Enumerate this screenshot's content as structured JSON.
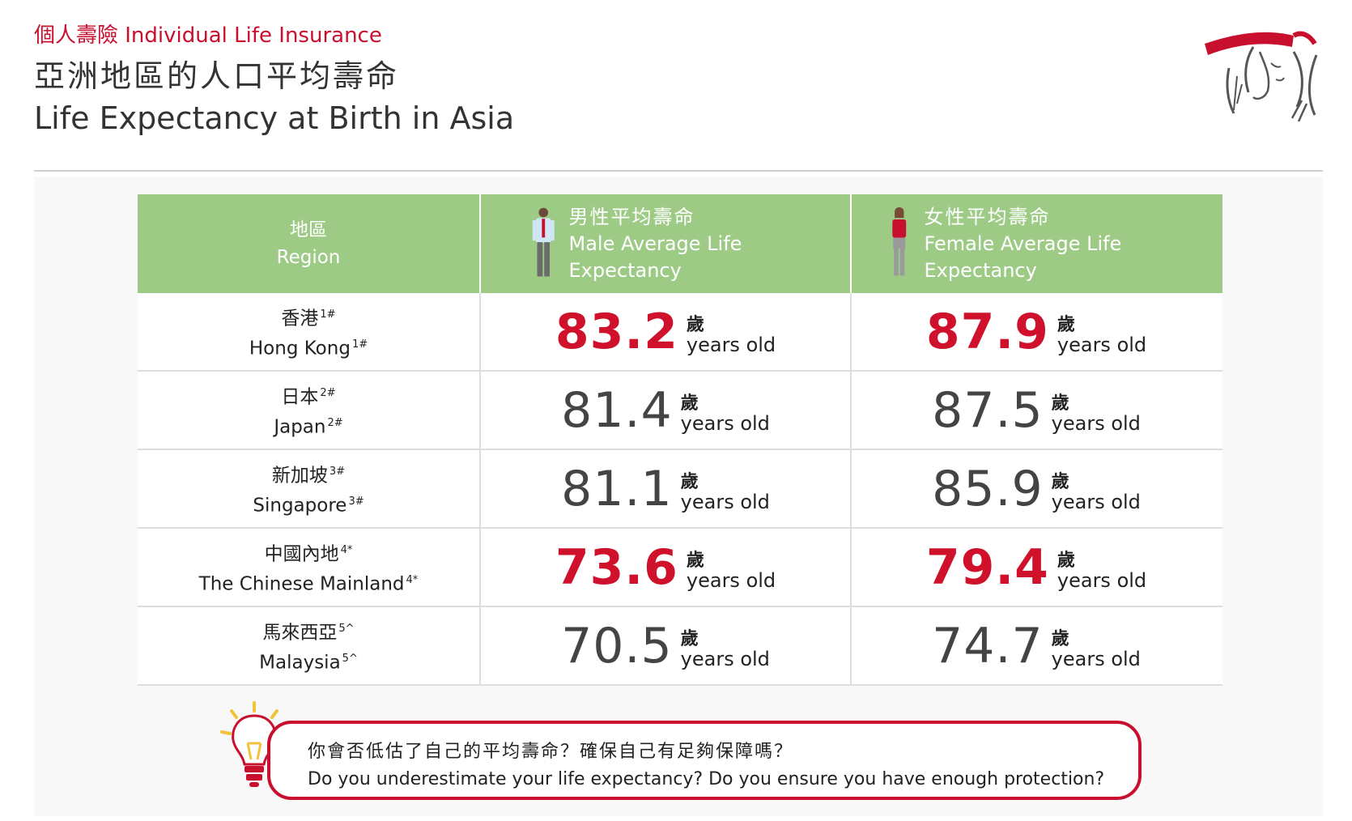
{
  "header": {
    "eyebrow": "個人壽險 Individual Life Insurance",
    "title_zh": "亞洲地區的人口平均壽命",
    "title_en": "Life Expectancy at Birth in Asia"
  },
  "table": {
    "columns": {
      "region_zh": "地區",
      "region_en": "Region",
      "male_zh": "男性平均壽命",
      "male_en": "Male Average Life Expectancy",
      "female_zh": "女性平均壽命",
      "female_en": "Female Average Life Expectancy"
    },
    "unit_zh": "歲",
    "unit_en": "years old",
    "rows": [
      {
        "region_zh": "香港",
        "region_en": "Hong Kong",
        "note": "1#",
        "male": "83.2",
        "female": "87.9",
        "highlight": true
      },
      {
        "region_zh": "日本",
        "region_en": "Japan",
        "note": "2#",
        "male": "81.4",
        "female": "87.5",
        "highlight": false
      },
      {
        "region_zh": "新加坡",
        "region_en": "Singapore",
        "note": "3#",
        "male": "81.1",
        "female": "85.9",
        "highlight": false
      },
      {
        "region_zh": "中國內地",
        "region_en": "The Chinese Mainland",
        "note": "4*",
        "male": "73.6",
        "female": "79.4",
        "highlight": true
      },
      {
        "region_zh": "馬來西亞",
        "region_en": "Malaysia",
        "note": "5^",
        "male": "70.5",
        "female": "74.7",
        "highlight": false
      }
    ]
  },
  "question": {
    "zh": "你會否低估了自己的平均壽命？確保自己有足夠保障嗎？",
    "en": "Do you underestimate your life expectancy? Do you ensure you have enough protection?"
  },
  "colors": {
    "accent_red": "#c8102e",
    "header_green": "#9dcb86",
    "icons": [
      "brand-logo-icon",
      "male-figure-icon",
      "female-figure-icon",
      "lightbulb-icon"
    ]
  }
}
